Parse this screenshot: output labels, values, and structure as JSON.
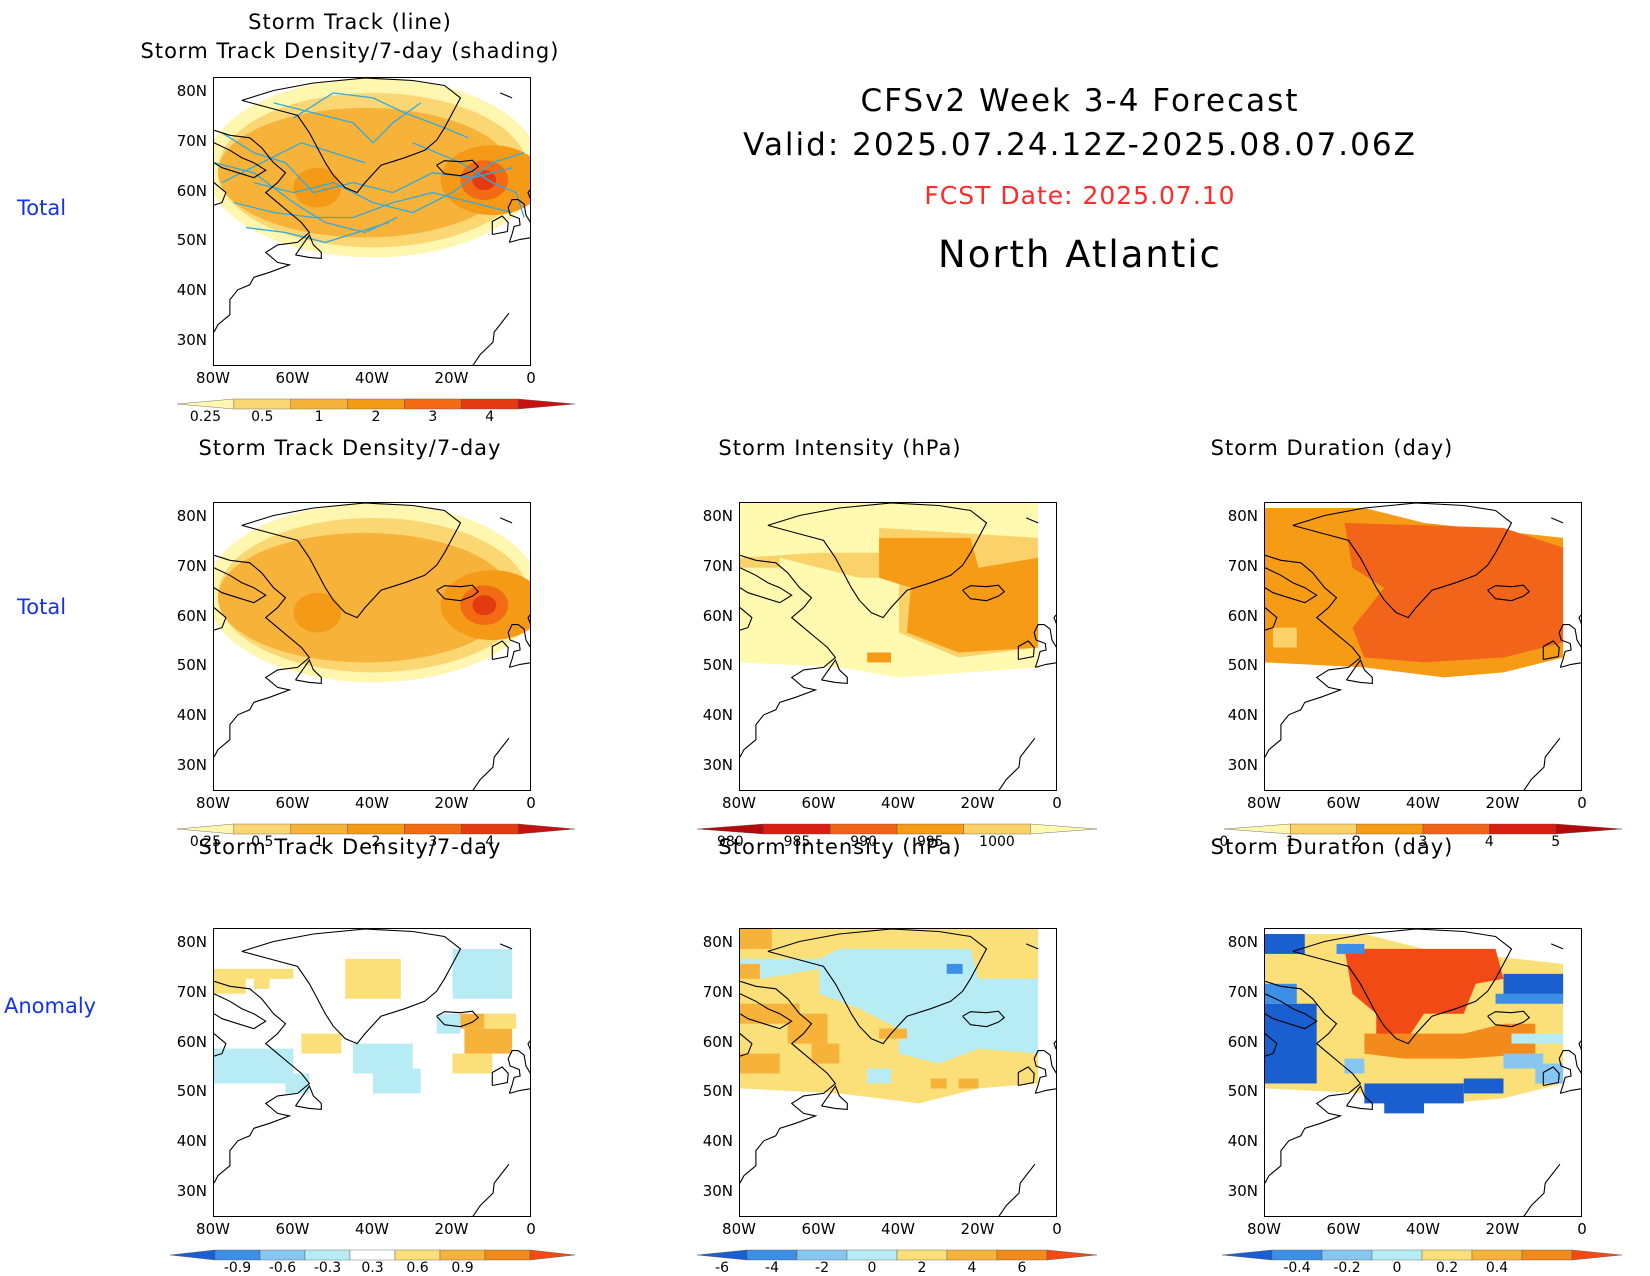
{
  "header": {
    "line1": "CFSv2 Week 3-4 Forecast",
    "line2": "Valid: 2025.07.24.12Z-2025.08.07.06Z",
    "fcst_date": "FCST Date: 2025.07.10",
    "region": "North Atlantic",
    "fcst_color": "#ff2a2a"
  },
  "rows": [
    {
      "label": "Total"
    },
    {
      "label": "Total"
    },
    {
      "label": "Anomaly"
    }
  ],
  "axes": {
    "x_ticks": [
      "80W",
      "60W",
      "40W",
      "20W",
      "0"
    ],
    "y_ticks": [
      "80N",
      "70N",
      "60N",
      "50N",
      "40N",
      "30N"
    ]
  },
  "chart_data": [
    {
      "type": "heatmap",
      "id": "track-total",
      "title_line1": "Storm Track (line)",
      "title_line2": "Storm Track Density/7-day (shading)",
      "x_range": [
        -80,
        0
      ],
      "y_range": [
        25,
        83
      ],
      "colorbar": {
        "labels": [
          "0.25",
          "0.5",
          "1",
          "2",
          "3",
          "4"
        ],
        "colors": [
          "#fff6b0",
          "#fbd773",
          "#f7b23a",
          "#f49a16",
          "#f26b14",
          "#e33a10",
          "#c81010"
        ]
      },
      "max_density_location": [
        -10,
        62
      ],
      "track_line_color": "#33aadd"
    },
    {
      "type": "heatmap",
      "id": "density-total",
      "title": "Storm Track Density/7-day",
      "x_range": [
        -80,
        0
      ],
      "y_range": [
        25,
        83
      ],
      "colorbar": {
        "labels": [
          "0.25",
          "0.5",
          "1",
          "2",
          "3",
          "4"
        ],
        "colors": [
          "#fff6b0",
          "#fbd773",
          "#f7b23a",
          "#f49a16",
          "#f26b14",
          "#e33a10",
          "#c81010"
        ]
      }
    },
    {
      "type": "heatmap",
      "id": "intensity-total",
      "title": "Storm Intensity (hPa)",
      "x_range": [
        -80,
        0
      ],
      "y_range": [
        25,
        83
      ],
      "colorbar": {
        "labels": [
          "980",
          "985",
          "990",
          "995",
          "1000"
        ],
        "colors": [
          "#b40a0a",
          "#d81e10",
          "#f2641a",
          "#f59b15",
          "#fbd26a",
          "#fffab0"
        ]
      }
    },
    {
      "type": "heatmap",
      "id": "duration-total",
      "title": "Storm Duration (day)",
      "x_range": [
        -80,
        0
      ],
      "y_range": [
        25,
        83
      ],
      "colorbar": {
        "labels": [
          "0",
          "1",
          "2",
          "3",
          "4",
          "5"
        ],
        "colors": [
          "#fff6b0",
          "#fbd26a",
          "#f59b15",
          "#f2641a",
          "#d81e10",
          "#b40a0a"
        ]
      }
    },
    {
      "type": "heatmap",
      "id": "density-anom",
      "title": "Storm Track Density/7-day",
      "x_range": [
        -80,
        0
      ],
      "y_range": [
        25,
        83
      ],
      "colorbar": {
        "labels": [
          "-0.9",
          "-0.6",
          "-0.3",
          "0.3",
          "0.6",
          "0.9"
        ],
        "colors": [
          "#1a5fcf",
          "#3d8fe6",
          "#86c6f0",
          "#b8ecf5",
          "#ffffff",
          "#fbe07a",
          "#f7b23a",
          "#f28a1c",
          "#f24a14"
        ]
      }
    },
    {
      "type": "heatmap",
      "id": "intensity-anom",
      "title": "Storm Intensity (hPa)",
      "x_range": [
        -80,
        0
      ],
      "y_range": [
        25,
        83
      ],
      "colorbar": {
        "labels": [
          "-6",
          "-4",
          "-2",
          "0",
          "2",
          "4",
          "6"
        ],
        "colors": [
          "#1a5fcf",
          "#3d8fe6",
          "#86c6f0",
          "#b8ecf5",
          "#fbe07a",
          "#f7b23a",
          "#f28a1c",
          "#f24a14"
        ]
      }
    },
    {
      "type": "heatmap",
      "id": "duration-anom",
      "title": "Storm Duration (day)",
      "x_range": [
        -80,
        0
      ],
      "y_range": [
        25,
        83
      ],
      "colorbar": {
        "labels": [
          "-0.4",
          "-0.2",
          "0",
          "0.2",
          "0.4"
        ],
        "colors": [
          "#1a5fcf",
          "#3d8fe6",
          "#86c6f0",
          "#b8ecf5",
          "#fbe07a",
          "#f7b23a",
          "#f28a1c",
          "#f24a14"
        ]
      }
    }
  ]
}
